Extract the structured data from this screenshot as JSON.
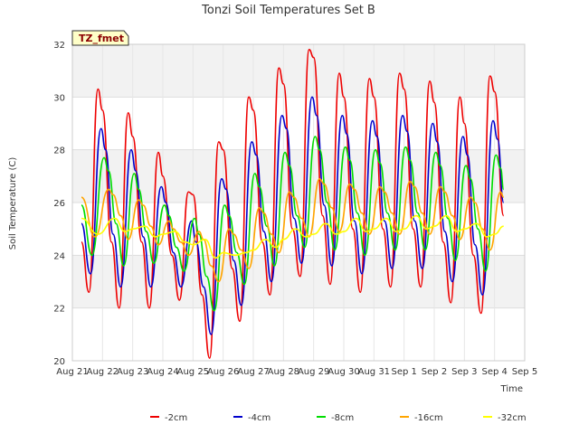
{
  "chart_data": {
    "type": "line",
    "title": "Tonzi Soil Temperatures Set B",
    "xlabel": "Time",
    "ylabel": "Soil Temperature (C)",
    "badge": "TZ_fmet",
    "ylim": [
      20,
      32
    ],
    "yticks": [
      20,
      22,
      24,
      26,
      28,
      30,
      32
    ],
    "xlim": [
      0,
      15
    ],
    "xticks": [
      {
        "x": 0,
        "label": "Aug 21"
      },
      {
        "x": 1,
        "label": "Aug 22"
      },
      {
        "x": 2,
        "label": "Aug 23"
      },
      {
        "x": 3,
        "label": "Aug 24"
      },
      {
        "x": 4,
        "label": "Aug 25"
      },
      {
        "x": 5,
        "label": "Aug 26"
      },
      {
        "x": 6,
        "label": "Aug 27"
      },
      {
        "x": 7,
        "label": "Aug 28"
      },
      {
        "x": 8,
        "label": "Aug 29"
      },
      {
        "x": 9,
        "label": "Aug 30"
      },
      {
        "x": 10,
        "label": "Aug 31"
      },
      {
        "x": 11,
        "label": "Sep 1"
      },
      {
        "x": 12,
        "label": "Sep 2"
      },
      {
        "x": 13,
        "label": "Sep 3"
      },
      {
        "x": 14,
        "label": "Sep 4"
      },
      {
        "x": 15,
        "label": "Sep 5"
      }
    ],
    "grid": true,
    "legend_position": "bottom",
    "series": [
      {
        "name": "-2cm",
        "color": "#ee0000",
        "x": [
          0.3,
          0.55,
          0.85,
          1.0,
          1.3,
          1.55,
          1.85,
          2.0,
          2.3,
          2.55,
          2.85,
          3.0,
          3.3,
          3.55,
          3.85,
          4.0,
          4.3,
          4.55,
          4.85,
          5.0,
          5.3,
          5.55,
          5.85,
          6.0,
          6.3,
          6.55,
          6.85,
          7.0,
          7.3,
          7.55,
          7.85,
          8.0,
          8.3,
          8.55,
          8.85,
          9.0,
          9.3,
          9.55,
          9.85,
          10.0,
          10.3,
          10.55,
          10.85,
          11.0,
          11.3,
          11.55,
          11.85,
          12.0,
          12.3,
          12.55,
          12.85,
          13.0,
          13.3,
          13.55,
          13.85,
          14.0,
          14.3
        ],
        "y": [
          24.5,
          22.6,
          30.3,
          29.5,
          24.5,
          22.0,
          29.4,
          28.5,
          24.5,
          22.0,
          27.9,
          27.0,
          24.0,
          22.3,
          26.4,
          26.3,
          22.5,
          20.1,
          28.3,
          28.0,
          23.5,
          21.5,
          30.0,
          29.5,
          24.5,
          22.5,
          31.1,
          30.5,
          25.0,
          23.2,
          31.8,
          31.5,
          25.5,
          22.9,
          30.9,
          30.0,
          25.0,
          22.6,
          30.7,
          30.0,
          25.0,
          22.8,
          30.9,
          30.3,
          25.0,
          22.8,
          30.6,
          29.8,
          24.5,
          22.2,
          30.0,
          29.0,
          24.0,
          21.8,
          30.8,
          30.2,
          25.5
        ]
      },
      {
        "name": "-4cm",
        "color": "#0000cc",
        "x": [
          0.3,
          0.6,
          0.95,
          1.1,
          1.35,
          1.6,
          1.95,
          2.1,
          2.35,
          2.6,
          2.95,
          3.1,
          3.35,
          3.6,
          3.95,
          4.1,
          4.35,
          4.6,
          4.95,
          5.1,
          5.35,
          5.6,
          5.95,
          6.1,
          6.35,
          6.6,
          6.95,
          7.1,
          7.35,
          7.6,
          7.95,
          8.1,
          8.35,
          8.6,
          8.95,
          9.1,
          9.35,
          9.6,
          9.95,
          10.1,
          10.35,
          10.6,
          10.95,
          11.1,
          11.35,
          11.6,
          11.95,
          12.1,
          12.35,
          12.6,
          12.95,
          13.1,
          13.35,
          13.6,
          13.95,
          14.1,
          14.3
        ],
        "y": [
          25.2,
          23.3,
          28.8,
          28.0,
          24.8,
          22.8,
          28.0,
          27.2,
          24.7,
          22.8,
          26.6,
          26.0,
          24.1,
          22.8,
          25.3,
          24.5,
          22.8,
          21.0,
          26.9,
          26.5,
          23.8,
          22.1,
          28.3,
          27.8,
          24.9,
          23.0,
          29.3,
          28.8,
          25.4,
          23.7,
          30.0,
          29.3,
          25.9,
          23.6,
          29.3,
          28.6,
          25.3,
          23.3,
          29.1,
          28.5,
          25.3,
          23.5,
          29.3,
          28.7,
          25.3,
          23.5,
          29.0,
          28.3,
          24.9,
          23.0,
          28.5,
          27.8,
          24.4,
          22.5,
          29.1,
          28.4,
          26.0
        ]
      },
      {
        "name": "-8cm",
        "color": "#00dd00",
        "x": [
          0.3,
          0.65,
          1.05,
          1.2,
          1.45,
          1.7,
          2.05,
          2.2,
          2.45,
          2.7,
          3.05,
          3.2,
          3.45,
          3.7,
          4.05,
          4.2,
          4.45,
          4.7,
          5.05,
          5.2,
          5.45,
          5.7,
          6.05,
          6.2,
          6.45,
          6.7,
          7.05,
          7.2,
          7.45,
          7.7,
          8.05,
          8.2,
          8.45,
          8.7,
          9.05,
          9.2,
          9.45,
          9.7,
          10.05,
          10.2,
          10.45,
          10.7,
          11.05,
          11.2,
          11.45,
          11.7,
          12.05,
          12.2,
          12.45,
          12.7,
          13.05,
          13.2,
          13.45,
          13.7,
          14.05,
          14.2,
          14.3
        ],
        "y": [
          25.9,
          24.0,
          27.7,
          27.2,
          25.2,
          23.6,
          27.1,
          26.5,
          24.9,
          23.7,
          25.9,
          25.5,
          24.3,
          23.4,
          25.4,
          24.8,
          23.2,
          21.9,
          25.9,
          25.5,
          24.1,
          22.9,
          27.1,
          26.6,
          25.1,
          23.6,
          27.9,
          27.4,
          25.5,
          24.3,
          28.5,
          28.0,
          26.0,
          24.2,
          28.1,
          27.6,
          25.6,
          24.0,
          28.0,
          27.5,
          25.6,
          24.2,
          28.1,
          27.6,
          25.6,
          24.2,
          27.9,
          27.4,
          25.4,
          23.8,
          27.4,
          26.9,
          25.0,
          23.4,
          27.8,
          27.3,
          26.5
        ]
      },
      {
        "name": "-16cm",
        "color": "#ffa500",
        "x": [
          0.3,
          0.75,
          1.2,
          1.35,
          1.6,
          1.85,
          2.2,
          2.35,
          2.6,
          2.85,
          3.2,
          3.35,
          3.6,
          3.85,
          4.2,
          4.35,
          4.6,
          4.85,
          5.2,
          5.35,
          5.6,
          5.85,
          6.2,
          6.35,
          6.6,
          6.85,
          7.2,
          7.35,
          7.6,
          7.85,
          8.2,
          8.35,
          8.6,
          8.85,
          9.2,
          9.35,
          9.6,
          9.85,
          10.2,
          10.35,
          10.6,
          10.85,
          11.2,
          11.35,
          11.6,
          11.85,
          12.2,
          12.35,
          12.6,
          12.85,
          13.2,
          13.35,
          13.6,
          13.85,
          14.2,
          14.3
        ],
        "y": [
          26.2,
          24.7,
          26.5,
          26.3,
          25.5,
          24.6,
          26.1,
          25.9,
          25.1,
          24.4,
          25.3,
          25.0,
          24.5,
          24.0,
          24.9,
          24.6,
          23.6,
          23.0,
          25.0,
          24.8,
          24.2,
          23.5,
          25.8,
          25.6,
          24.8,
          24.1,
          26.4,
          26.2,
          25.4,
          24.7,
          26.9,
          26.7,
          25.8,
          24.9,
          26.7,
          26.5,
          25.6,
          24.8,
          26.6,
          26.4,
          25.6,
          24.8,
          26.8,
          26.6,
          25.6,
          24.8,
          26.6,
          26.4,
          25.5,
          24.6,
          26.2,
          26.0,
          25.0,
          24.2,
          26.4,
          26.2
        ]
      },
      {
        "name": "-32cm",
        "color": "#ffff00",
        "x": [
          0.3,
          0.85,
          1.4,
          1.75,
          2.0,
          2.4,
          2.75,
          3.0,
          3.4,
          3.75,
          4.0,
          4.4,
          4.75,
          5.0,
          5.4,
          5.75,
          6.0,
          6.4,
          6.75,
          7.0,
          7.4,
          7.75,
          8.0,
          8.4,
          8.75,
          9.0,
          9.4,
          9.75,
          10.0,
          10.4,
          10.75,
          11.0,
          11.4,
          11.75,
          12.0,
          12.4,
          12.75,
          13.0,
          13.4,
          13.75,
          14.0,
          14.3
        ],
        "y": [
          25.4,
          24.8,
          25.4,
          24.9,
          25.0,
          25.1,
          24.7,
          24.8,
          24.9,
          24.5,
          24.4,
          24.6,
          23.9,
          24.1,
          24.0,
          24.1,
          24.2,
          24.6,
          24.3,
          24.6,
          25.0,
          24.7,
          24.8,
          25.2,
          24.8,
          24.9,
          25.4,
          24.9,
          25.0,
          25.4,
          24.9,
          25.0,
          25.5,
          25.0,
          25.1,
          25.5,
          24.9,
          25.0,
          25.2,
          24.7,
          24.8,
          25.1
        ]
      }
    ]
  }
}
